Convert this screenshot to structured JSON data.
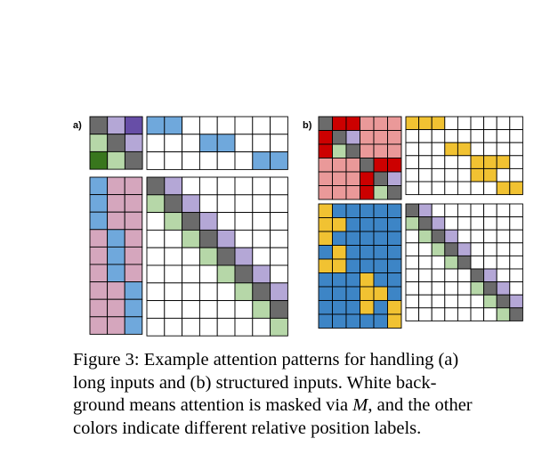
{
  "panels": [
    {
      "label": "a)"
    },
    {
      "label": "b)"
    }
  ],
  "caption": {
    "line1": "Figure 3:  Example attention patterns for handling (a)",
    "line2": "long inputs and (b) structured inputs.   White back-",
    "line3_before": "ground means attention is masked via ",
    "line3_math": "M",
    "line3_after": ", and the other",
    "line4": "colors indicate different relative position labels."
  },
  "colors": {
    "gray": "#6b6b6b",
    "purple": "#b4a7d6",
    "dark_purple": "#674ea7",
    "green": "#b6d7a8",
    "dark_green": "#38761d",
    "blue": "#6fa8dc",
    "pink": "#d5a6bd",
    "white": "#ffffff",
    "red": "#cc0000",
    "light_red": "#ea9999",
    "yellow": "#f1c232",
    "strong_blue": "#3d85c6"
  }
}
